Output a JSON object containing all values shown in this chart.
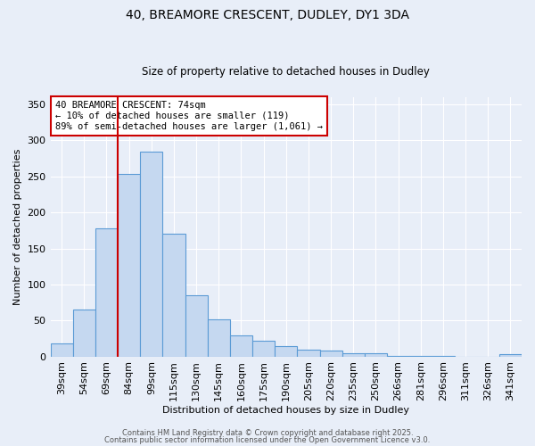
{
  "title1": "40, BREAMORE CRESCENT, DUDLEY, DY1 3DA",
  "title2": "Size of property relative to detached houses in Dudley",
  "xlabel": "Distribution of detached houses by size in Dudley",
  "ylabel": "Number of detached properties",
  "categories": [
    "39sqm",
    "54sqm",
    "69sqm",
    "84sqm",
    "99sqm",
    "115sqm",
    "130sqm",
    "145sqm",
    "160sqm",
    "175sqm",
    "190sqm",
    "205sqm",
    "220sqm",
    "235sqm",
    "250sqm",
    "266sqm",
    "281sqm",
    "296sqm",
    "311sqm",
    "326sqm",
    "341sqm"
  ],
  "values": [
    18,
    65,
    178,
    253,
    285,
    170,
    85,
    52,
    29,
    22,
    14,
    10,
    8,
    5,
    4,
    1,
    1,
    1,
    0,
    0,
    3
  ],
  "bar_color": "#c5d8f0",
  "bar_edge_color": "#5b9bd5",
  "red_line_index": 2,
  "annotation_line1": "40 BREAMORE CRESCENT: 74sqm",
  "annotation_line2": "← 10% of detached houses are smaller (119)",
  "annotation_line3": "89% of semi-detached houses are larger (1,061) →",
  "annotation_box_color": "#ffffff",
  "annotation_box_edge": "#cc0000",
  "red_line_color": "#cc0000",
  "footer1": "Contains HM Land Registry data © Crown copyright and database right 2025.",
  "footer2": "Contains public sector information licensed under the Open Government Licence v3.0.",
  "background_color": "#e8eef8",
  "ylim": [
    0,
    360
  ],
  "yticks": [
    0,
    50,
    100,
    150,
    200,
    250,
    300,
    350
  ]
}
